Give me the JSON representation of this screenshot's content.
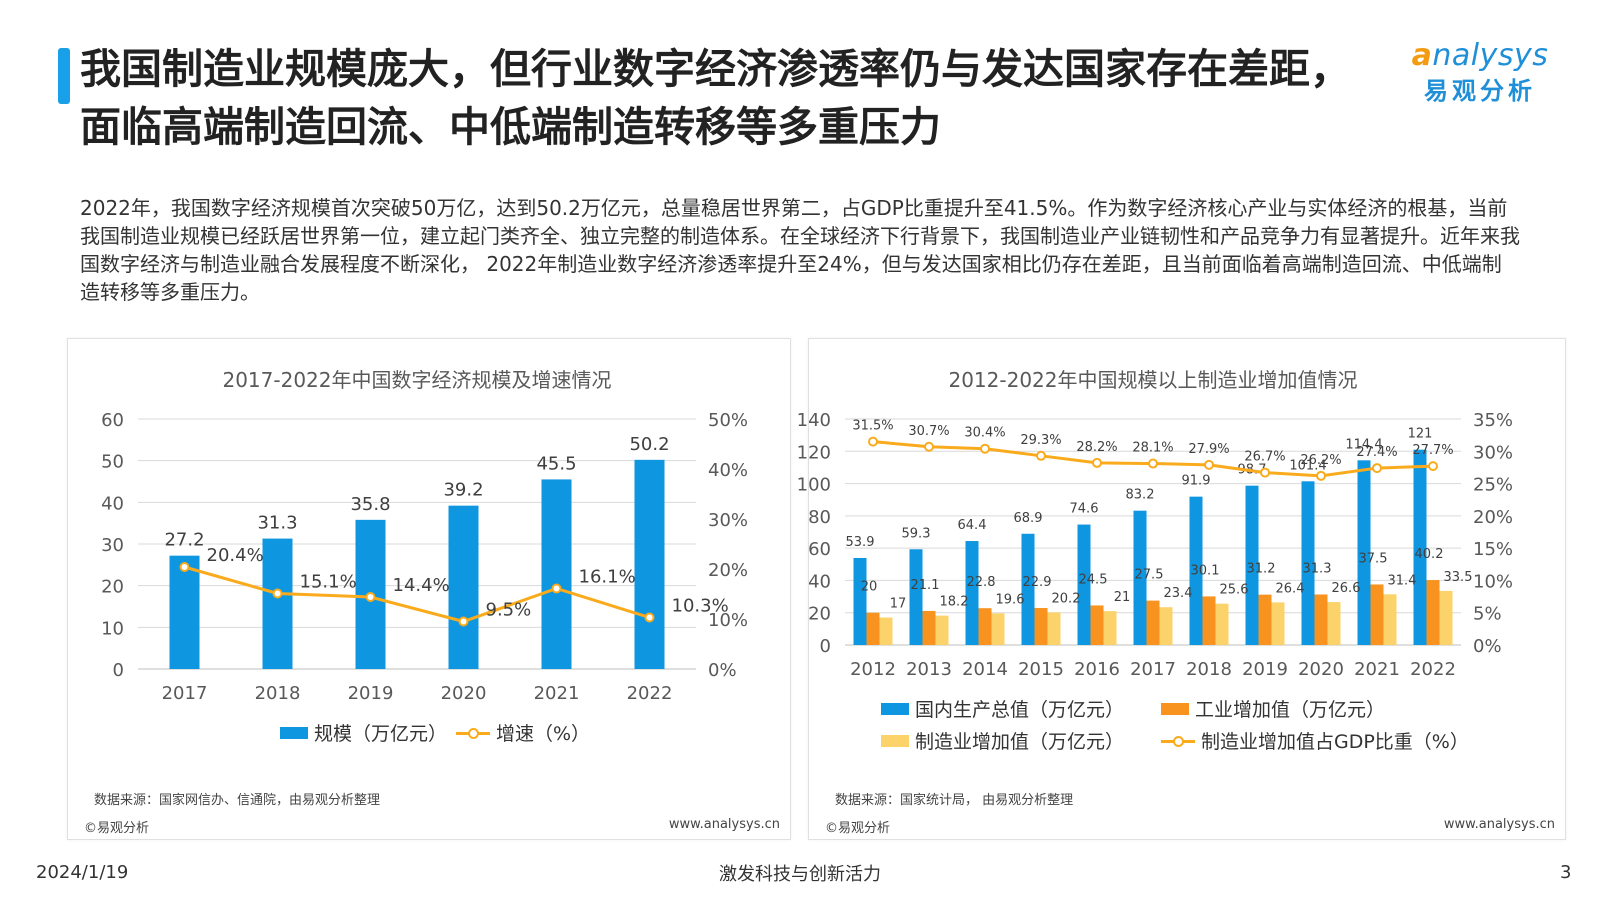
{
  "header": {
    "title": "我国制造业规模庞大，但行业数字经济渗透率仍与发达国家存在差距，面临高端制造回流、中低端制造转移等多重压力",
    "logo_en": "nalysys",
    "logo_en_first": "a",
    "logo_cn": "易观分析"
  },
  "summary": "2022年，我国数字经济规模首次突破50万亿，达到50.2万亿元，总量稳居世界第二，占GDP比重提升至41.5%。作为数字经济核心产业与实体经济的根基，当前我国制造业规模已经跃居世界第一位，建立起门类齐全、独立完整的制造体系。在全球经济下行背景下，我国制造业产业链韧性和产品竞争力有显著提升。近年来我国数字经济与制造业融合发展程度不断深化， 2022年制造业数字经济渗透率提升至24%，但与发达国家相比仍存在差距，且当前面临着高端制造回流、中低端制造转移等多重压力。",
  "colors": {
    "blue": "#0f96e0",
    "orange": "#f7931e",
    "light_yellow": "#fcd36a",
    "line_yellow": "#f9ab1d",
    "title_accent": "#1aa0e8"
  },
  "left_panel": {
    "source": "数据来源：国家网信办、信通院，由易观分析整理",
    "copyright": "©易观分析",
    "site": "www.analysys.cn"
  },
  "right_panel": {
    "source": "数据来源：国家统计局， 由易观分析整理",
    "copyright": "©易观分析",
    "site": "www.analysys.cn"
  },
  "footer": {
    "date": "2024/1/19",
    "slogan": "激发科技与创新活力",
    "page": "3"
  },
  "chart_data": [
    {
      "type": "bar",
      "title": "2017-2022年中国数字经济规模及增速情况",
      "categories": [
        "2017",
        "2018",
        "2019",
        "2020",
        "2021",
        "2022"
      ],
      "series": [
        {
          "name": "规模（万亿元）",
          "type": "bar",
          "axis": "left",
          "values": [
            27.2,
            31.3,
            35.8,
            39.2,
            45.5,
            50.2
          ],
          "value_labels": [
            "27.2",
            "31.3",
            "35.8",
            "39.2",
            "45.5",
            "50.2"
          ]
        },
        {
          "name": "增速（%）",
          "type": "line",
          "axis": "right",
          "values": [
            20.4,
            15.1,
            14.4,
            9.5,
            16.1,
            10.3
          ],
          "value_labels": [
            "20.4%",
            "15.1%",
            "14.4%",
            "9.5%",
            "16.1%",
            "10.3%"
          ]
        }
      ],
      "ylim": [
        0,
        60
      ],
      "yticks": [
        "0",
        "10",
        "20",
        "30",
        "40",
        "50",
        "60"
      ],
      "y2lim": [
        0,
        50
      ],
      "y2ticks": [
        "0%",
        "10%",
        "20%",
        "30%",
        "40%",
        "50%"
      ],
      "grid": true,
      "legend": "bottom"
    },
    {
      "type": "bar",
      "title": "2012-2022年中国规模以上制造业增加值情况",
      "categories": [
        "2012",
        "2013",
        "2014",
        "2015",
        "2016",
        "2017",
        "2018",
        "2019",
        "2020",
        "2021",
        "2022"
      ],
      "series": [
        {
          "name": "国内生产总值（万亿元）",
          "type": "bar",
          "axis": "left",
          "values": [
            53.9,
            59.3,
            64.4,
            68.9,
            74.6,
            83.2,
            91.9,
            98.7,
            101.4,
            114.4,
            121
          ],
          "value_labels": [
            "53.9",
            "59.3",
            "64.4",
            "68.9",
            "74.6",
            "83.2",
            "91.9",
            "98.7",
            "101.4",
            "114.4",
            "121"
          ]
        },
        {
          "name": "工业增加值（万亿元）",
          "type": "bar",
          "axis": "left",
          "values": [
            20,
            21.1,
            22.8,
            22.9,
            24.5,
            27.5,
            30.1,
            31.2,
            31.3,
            37.5,
            40.2
          ],
          "value_labels": [
            "20",
            "21.1",
            "22.8",
            "22.9",
            "24.5",
            "27.5",
            "30.1",
            "31.2",
            "31.3",
            "37.5",
            "40.2"
          ]
        },
        {
          "name": "制造业增加值（万亿元）",
          "type": "bar",
          "axis": "left",
          "values": [
            17,
            18.2,
            19.6,
            20.2,
            21,
            23.4,
            25.6,
            26.4,
            26.6,
            31.4,
            33.5
          ],
          "value_labels": [
            "17",
            "18.2",
            "19.6",
            "20.2",
            "21",
            "23.4",
            "25.6",
            "26.4",
            "26.6",
            "31.4",
            "33.5"
          ]
        },
        {
          "name": "制造业增加值占GDP比重（%）",
          "type": "line",
          "axis": "right",
          "values": [
            31.5,
            30.7,
            30.4,
            29.3,
            28.2,
            28.1,
            27.9,
            26.7,
            26.2,
            27.4,
            27.7
          ],
          "value_labels": [
            "31.5%",
            "30.7%",
            "30.4%",
            "29.3%",
            "28.2%",
            "28.1%",
            "27.9%",
            "26.7%",
            "26.2%",
            "27.4%",
            "27.7%"
          ]
        }
      ],
      "ylim": [
        0,
        140
      ],
      "yticks": [
        "0",
        "20",
        "40",
        "60",
        "80",
        "100",
        "120",
        "140"
      ],
      "y2lim": [
        0,
        35
      ],
      "y2ticks": [
        "0%",
        "5%",
        "10%",
        "15%",
        "20%",
        "25%",
        "30%",
        "35%"
      ],
      "grid": true,
      "legend": "bottom"
    }
  ]
}
